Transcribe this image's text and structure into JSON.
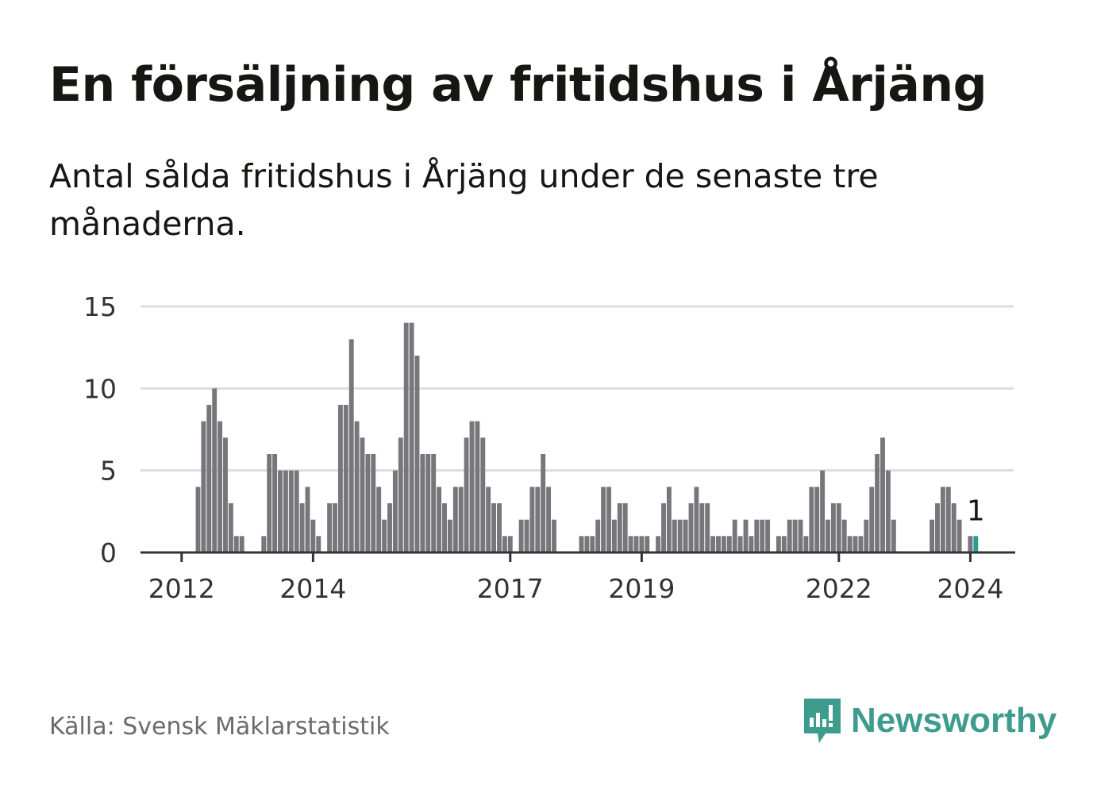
{
  "title": "En försäljning av fritidshus i Årjäng",
  "subtitle": "Antal sålda fritidshus i Årjäng under de senaste tre månaderna.",
  "source": "Källa: Svensk Mäklarstatistik",
  "brand": {
    "name": "Newsworthy",
    "icon": "newsworthy-logo-icon"
  },
  "colors": {
    "bar": "#77767b",
    "highlight": "#2a9d8f",
    "grid": "#dddddd",
    "axis": "#333333",
    "brand": "#3e9c8f"
  },
  "chart_data": {
    "type": "bar",
    "start": "2011-01",
    "frequency": "monthly",
    "ylim": [
      0,
      15
    ],
    "yticks": [
      0,
      5,
      10,
      15
    ],
    "xticks": [
      "2012",
      "2014",
      "2017",
      "2019",
      "2022",
      "2024"
    ],
    "grid": true,
    "values": [
      0,
      0,
      0,
      0,
      0,
      0,
      0,
      0,
      0,
      0,
      0,
      0,
      0,
      0,
      0,
      4,
      8,
      9,
      10,
      8,
      7,
      3,
      1,
      1,
      0,
      0,
      0,
      1,
      6,
      6,
      5,
      5,
      5,
      5,
      3,
      4,
      2,
      1,
      0,
      3,
      3,
      9,
      9,
      13,
      8,
      7,
      6,
      6,
      4,
      2,
      3,
      5,
      7,
      14,
      14,
      12,
      6,
      6,
      6,
      4,
      3,
      2,
      4,
      4,
      7,
      8,
      8,
      7,
      4,
      3,
      3,
      1,
      1,
      0,
      2,
      2,
      4,
      4,
      6,
      4,
      2,
      0,
      0,
      0,
      0,
      1,
      1,
      1,
      2,
      4,
      4,
      2,
      3,
      3,
      1,
      1,
      1,
      1,
      0,
      1,
      3,
      4,
      2,
      2,
      2,
      3,
      4,
      3,
      3,
      1,
      1,
      1,
      1,
      2,
      1,
      2,
      1,
      2,
      2,
      2,
      0,
      1,
      1,
      2,
      2,
      2,
      1,
      4,
      4,
      5,
      2,
      3,
      3,
      2,
      1,
      1,
      1,
      2,
      4,
      6,
      7,
      5,
      2,
      0,
      0,
      0,
      0,
      0,
      0,
      2,
      3,
      4,
      4,
      3,
      2,
      0,
      1,
      1
    ],
    "highlight": {
      "label": "1",
      "value": 1
    }
  }
}
